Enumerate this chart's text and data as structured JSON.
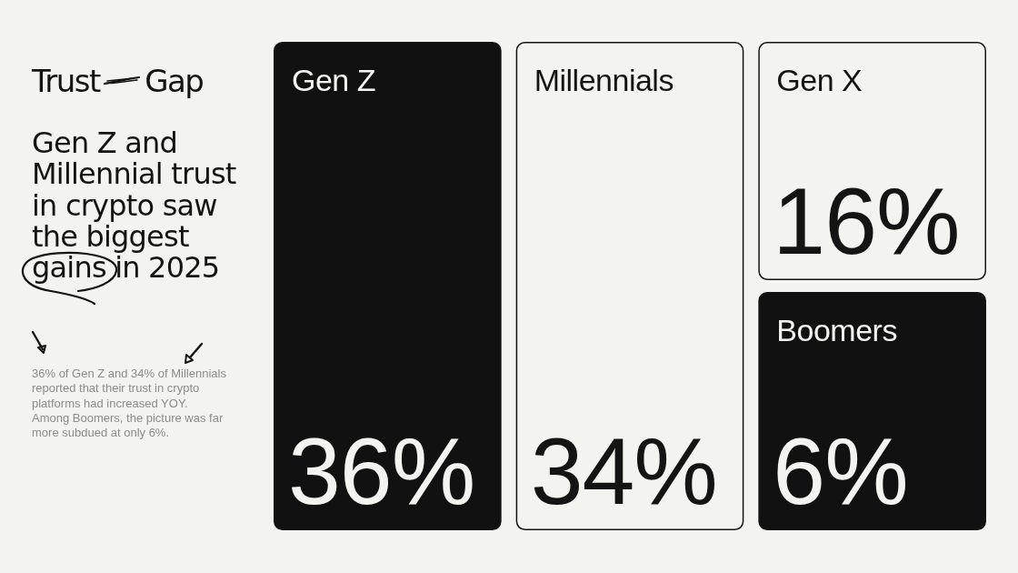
{
  "chart_data": {
    "type": "other",
    "title": "Trust Gap",
    "subtitle": "Gen Z and Millennial trust in crypto saw the biggest gains in 2025",
    "categories": [
      "Gen Z",
      "Millennials",
      "Gen X",
      "Boomers"
    ],
    "values": [
      36,
      34,
      16,
      6
    ],
    "value_labels": [
      "36%",
      "34%",
      "16%",
      "6%"
    ],
    "colors": [
      "#111111",
      "#f3f3ef",
      "#f3f3ef",
      "#111111"
    ],
    "annotations": [
      "36% of Gen Z and 34% of Millennials reported that their trust in crypto platforms had increased YOY. Among Boomers, the picture was far more subdued at only 6%."
    ]
  }
}
